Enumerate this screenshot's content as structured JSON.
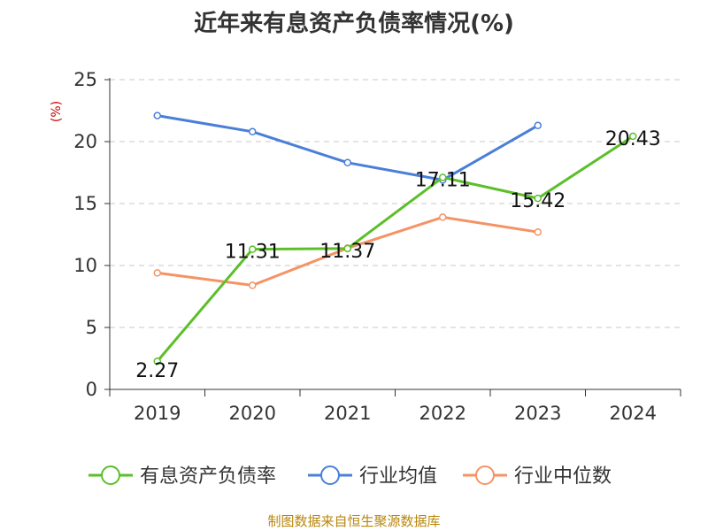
{
  "chart_data": {
    "type": "line",
    "title": "近年来有息资产负债率情况(%)",
    "ylabel": "(%)",
    "xlabel": "",
    "categories": [
      "2019",
      "2020",
      "2021",
      "2022",
      "2023",
      "2024"
    ],
    "ylim": [
      0,
      25
    ],
    "yticks": [
      0,
      5,
      10,
      15,
      20,
      25
    ],
    "grid": true,
    "legend_position": "bottom",
    "series": [
      {
        "name": "有息资产负债率",
        "color": "#5cbf2a",
        "values": [
          2.27,
          11.31,
          11.37,
          17.11,
          15.42,
          20.43
        ],
        "labels": [
          "2.27",
          "11.31",
          "11.37",
          "17.11",
          "15.42",
          "20.43"
        ]
      },
      {
        "name": "行业均值",
        "color": "#4a7fd8",
        "values": [
          22.1,
          20.8,
          18.3,
          16.9,
          21.3,
          null
        ]
      },
      {
        "name": "行业中位数",
        "color": "#f59364",
        "values": [
          9.4,
          8.4,
          11.4,
          13.9,
          12.7,
          null
        ]
      }
    ]
  },
  "footer": {
    "source": "制图数据来自恒生聚源数据库"
  }
}
